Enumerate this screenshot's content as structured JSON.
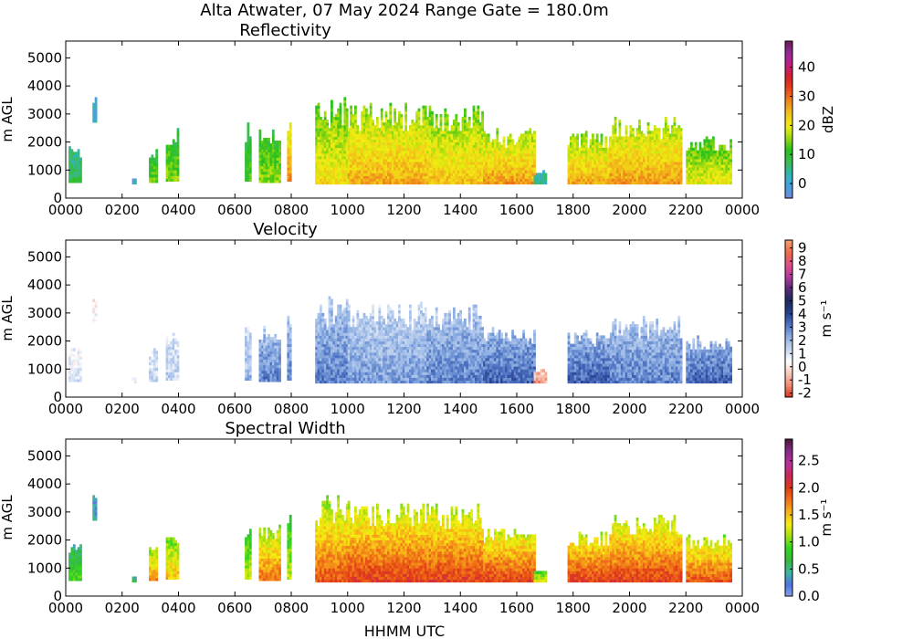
{
  "figure": {
    "suptitle": "Alta Atwater, 07 May 2024 Range Gate = 180.0m",
    "xlabel": "HHMM UTC"
  },
  "chart_data": [
    {
      "type": "heatmap",
      "title": "Reflectivity",
      "ylabel": "m AGL",
      "xlim": [
        0,
        24
      ],
      "ylim": [
        0,
        5600
      ],
      "xticks": [
        "0000",
        "0200",
        "0400",
        "0600",
        "0800",
        "1000",
        "1200",
        "1400",
        "1600",
        "1800",
        "2000",
        "2200",
        "0000"
      ],
      "yticks": [
        0,
        1000,
        2000,
        3000,
        4000,
        5000
      ],
      "colorbar": {
        "label": "dBZ",
        "min": -5,
        "max": 49,
        "ticks": [
          0,
          10,
          20,
          30,
          40
        ],
        "colors": [
          "#6f8bd8",
          "#49a0e0",
          "#2fb7b8",
          "#3dbb55",
          "#26c21a",
          "#9ad810",
          "#f0ee10",
          "#f3c41a",
          "#ef8a1b",
          "#e8481b",
          "#d7202a",
          "#c21c7e",
          "#9a2a9a",
          "#6a1b5a"
        ]
      },
      "echo_columns": [
        {
          "t0": 0.1,
          "t1": 0.55,
          "bot": 550,
          "top": 1850,
          "peak": 8
        },
        {
          "t0": 0.95,
          "t1": 1.05,
          "bot": 2700,
          "top": 3550,
          "peak": 2
        },
        {
          "t0": 2.35,
          "t1": 2.45,
          "bot": 500,
          "top": 700,
          "peak": 0
        },
        {
          "t0": 2.95,
          "t1": 3.25,
          "bot": 550,
          "top": 1800,
          "peak": 14
        },
        {
          "t0": 3.55,
          "t1": 3.95,
          "bot": 600,
          "top": 2450,
          "peak": 15
        },
        {
          "t0": 6.35,
          "t1": 6.55,
          "bot": 600,
          "top": 2650,
          "peak": 12
        },
        {
          "t0": 6.85,
          "t1": 7.55,
          "bot": 550,
          "top": 2550,
          "peak": 16
        },
        {
          "t0": 7.85,
          "t1": 7.95,
          "bot": 600,
          "top": 3200,
          "peak": 28
        },
        {
          "t0": 8.85,
          "t1": 10.0,
          "bot": 500,
          "top": 3550,
          "peak": 22
        },
        {
          "t0": 10.0,
          "t1": 12.8,
          "bot": 500,
          "top": 3350,
          "peak": 26
        },
        {
          "t0": 12.8,
          "t1": 14.8,
          "bot": 500,
          "top": 3250,
          "peak": 24
        },
        {
          "t0": 14.8,
          "t1": 16.6,
          "bot": 500,
          "top": 2450,
          "peak": 27
        },
        {
          "t0": 16.6,
          "t1": 17.0,
          "bot": 500,
          "top": 950,
          "peak": 5
        },
        {
          "t0": 17.8,
          "t1": 19.3,
          "bot": 500,
          "top": 2350,
          "peak": 26
        },
        {
          "t0": 19.3,
          "t1": 21.8,
          "bot": 500,
          "top": 2850,
          "peak": 27
        },
        {
          "t0": 22.0,
          "t1": 23.6,
          "bot": 500,
          "top": 2200,
          "peak": 20
        }
      ]
    },
    {
      "type": "heatmap",
      "title": "Velocity",
      "ylabel": "m s⁻¹",
      "ylabel_left": "m AGL",
      "xlim": [
        0,
        24
      ],
      "ylim": [
        0,
        5600
      ],
      "xticks": [
        "0000",
        "0200",
        "0400",
        "0600",
        "0800",
        "1000",
        "1200",
        "1400",
        "1600",
        "1800",
        "2000",
        "2200",
        "0000"
      ],
      "yticks": [
        0,
        1000,
        2000,
        3000,
        4000,
        5000
      ],
      "colorbar": {
        "label": "m s⁻¹",
        "min": -2.3,
        "max": 9.6,
        "ticks": [
          -2,
          -1,
          0,
          1,
          2,
          3,
          4,
          5,
          6,
          7,
          8,
          9
        ],
        "colors": [
          "#d7301f",
          "#f08a6e",
          "#f7c9bb",
          "#ffffff",
          "#c6d6f0",
          "#8fb0e3",
          "#4f74c4",
          "#27408f",
          "#1b2a5a",
          "#5a2a7a",
          "#b33a9a",
          "#e0508a",
          "#f06a4a",
          "#f5a070"
        ]
      },
      "echo_columns": [
        {
          "t0": 0.1,
          "t1": 0.55,
          "bot": 550,
          "top": 1850,
          "peak": 1
        },
        {
          "t0": 0.95,
          "t1": 1.05,
          "bot": 2700,
          "top": 3550,
          "peak": 0.5
        },
        {
          "t0": 2.35,
          "t1": 2.45,
          "bot": 500,
          "top": 700,
          "peak": 0.5
        },
        {
          "t0": 2.95,
          "t1": 3.25,
          "bot": 550,
          "top": 1800,
          "peak": 1.5
        },
        {
          "t0": 3.55,
          "t1": 3.95,
          "bot": 600,
          "top": 2450,
          "peak": 1.5
        },
        {
          "t0": 6.35,
          "t1": 6.55,
          "bot": 600,
          "top": 2650,
          "peak": 2
        },
        {
          "t0": 6.85,
          "t1": 7.55,
          "bot": 550,
          "top": 2550,
          "peak": 3
        },
        {
          "t0": 7.85,
          "t1": 7.95,
          "bot": 600,
          "top": 3200,
          "peak": 3
        },
        {
          "t0": 8.85,
          "t1": 10.0,
          "bot": 500,
          "top": 3550,
          "peak": 3
        },
        {
          "t0": 10.0,
          "t1": 12.8,
          "bot": 500,
          "top": 3350,
          "peak": 2.5
        },
        {
          "t0": 12.8,
          "t1": 14.8,
          "bot": 500,
          "top": 3250,
          "peak": 3
        },
        {
          "t0": 14.8,
          "t1": 16.6,
          "bot": 500,
          "top": 2450,
          "peak": 3.5
        },
        {
          "t0": 16.6,
          "t1": 17.0,
          "bot": 500,
          "top": 950,
          "peak": -1
        },
        {
          "t0": 17.8,
          "t1": 19.3,
          "bot": 500,
          "top": 2350,
          "peak": 3.5
        },
        {
          "t0": 19.3,
          "t1": 21.8,
          "bot": 500,
          "top": 2850,
          "peak": 3
        },
        {
          "t0": 22.0,
          "t1": 23.6,
          "bot": 500,
          "top": 2200,
          "peak": 3.5
        }
      ]
    },
    {
      "type": "heatmap",
      "title": "Spectral Width",
      "ylabel": "m AGL",
      "xlim": [
        0,
        24
      ],
      "ylim": [
        0,
        5600
      ],
      "xticks": [
        "0000",
        "0200",
        "0400",
        "0600",
        "0800",
        "1000",
        "1200",
        "1400",
        "1600",
        "1800",
        "2000",
        "2200",
        "0000"
      ],
      "yticks": [
        0,
        1000,
        2000,
        3000,
        4000,
        5000
      ],
      "colorbar": {
        "label": "m s⁻¹",
        "min": 0.0,
        "max": 2.9,
        "ticks": [
          "0.0",
          "0.5",
          "1.0",
          "1.5",
          "2.0",
          "2.5"
        ],
        "colors": [
          "#8aa0e8",
          "#4a78e0",
          "#3fb8a0",
          "#36b83a",
          "#2fd820",
          "#a8e010",
          "#f5ee10",
          "#f7b418",
          "#f07018",
          "#e03a18",
          "#c82858",
          "#b8309a",
          "#8a2a8a",
          "#4a1a3a"
        ]
      },
      "echo_columns": [
        {
          "t0": 0.1,
          "t1": 0.55,
          "bot": 550,
          "top": 1850,
          "peak": 0.9
        },
        {
          "t0": 0.95,
          "t1": 1.05,
          "bot": 2700,
          "top": 3550,
          "peak": 0.4
        },
        {
          "t0": 2.35,
          "t1": 2.45,
          "bot": 500,
          "top": 700,
          "peak": 0.6
        },
        {
          "t0": 2.95,
          "t1": 3.25,
          "bot": 550,
          "top": 1800,
          "peak": 1.7
        },
        {
          "t0": 3.55,
          "t1": 3.95,
          "bot": 600,
          "top": 2450,
          "peak": 1.5
        },
        {
          "t0": 6.35,
          "t1": 6.55,
          "bot": 600,
          "top": 2650,
          "peak": 1.2
        },
        {
          "t0": 6.85,
          "t1": 7.55,
          "bot": 550,
          "top": 2550,
          "peak": 1.8
        },
        {
          "t0": 7.85,
          "t1": 7.95,
          "bot": 600,
          "top": 3200,
          "peak": 1.2
        },
        {
          "t0": 8.85,
          "t1": 10.0,
          "bot": 500,
          "top": 3550,
          "peak": 1.9
        },
        {
          "t0": 10.0,
          "t1": 12.8,
          "bot": 500,
          "top": 3350,
          "peak": 2.0
        },
        {
          "t0": 12.8,
          "t1": 14.8,
          "bot": 500,
          "top": 3250,
          "peak": 2.0
        },
        {
          "t0": 14.8,
          "t1": 16.6,
          "bot": 500,
          "top": 2450,
          "peak": 2.0
        },
        {
          "t0": 16.6,
          "t1": 17.0,
          "bot": 500,
          "top": 950,
          "peak": 1.3
        },
        {
          "t0": 17.8,
          "t1": 19.3,
          "bot": 500,
          "top": 2350,
          "peak": 2.0
        },
        {
          "t0": 19.3,
          "t1": 21.8,
          "bot": 500,
          "top": 2850,
          "peak": 2.0
        },
        {
          "t0": 22.0,
          "t1": 23.6,
          "bot": 500,
          "top": 2200,
          "peak": 1.9
        }
      ]
    }
  ]
}
